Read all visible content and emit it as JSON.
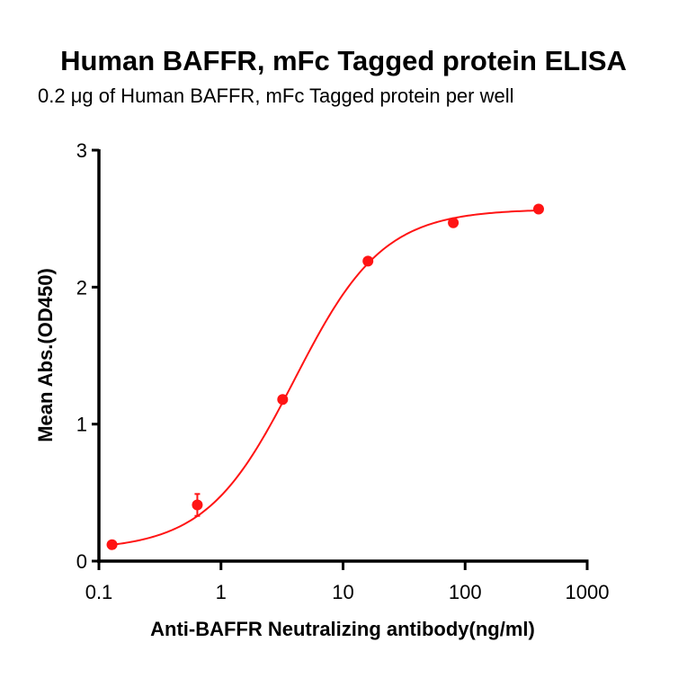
{
  "chart_data": {
    "type": "scatter",
    "title": "Human BAFFR,  mFc Tagged protein ELISA",
    "subtitle": "0.2 μg of Human BAFFR, mFc Tagged protein per well",
    "xlabel": "Anti-BAFFR Neutralizing antibody(ng/ml)",
    "ylabel": "Mean Abs.(OD450)",
    "xscale": "log",
    "xlim": [
      0.1,
      1000
    ],
    "ylim": [
      0,
      3
    ],
    "xticks": [
      "0.1",
      "1",
      "10",
      "100",
      "1000"
    ],
    "yticks": [
      "0",
      "1",
      "2",
      "3"
    ],
    "grid": false,
    "legend": null,
    "color": "#ff1414",
    "series": [
      {
        "name": "Human BAFFR, mFc Tagged protein",
        "x": [
          0.128,
          0.64,
          3.2,
          16,
          80,
          400
        ],
        "y": [
          0.12,
          0.41,
          1.18,
          2.19,
          2.47,
          2.57
        ],
        "error": [
          0.01,
          0.08,
          0.01,
          0.01,
          0.01,
          0.01
        ]
      }
    ],
    "fit": {
      "model": "4PL",
      "bottom": 0.08,
      "top": 2.57,
      "ec50": 4.0,
      "hill": 1.2
    }
  }
}
